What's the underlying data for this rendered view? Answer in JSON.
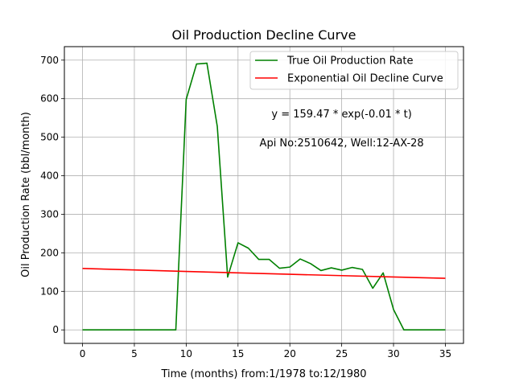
{
  "chart_data": {
    "type": "line",
    "title": "Oil Production Decline Curve",
    "xlabel": "Time (months) from:1/1978 to:12/1980",
    "ylabel": "Oil Production Rate (bbl/month)",
    "xlim": [
      -1.75,
      36.75
    ],
    "ylim": [
      -35,
      735
    ],
    "xticks": [
      0,
      5,
      10,
      15,
      20,
      25,
      30,
      35
    ],
    "yticks": [
      0,
      100,
      200,
      300,
      400,
      500,
      600,
      700
    ],
    "grid": true,
    "legend_position": "top-right",
    "series": [
      {
        "name": "True Oil Production Rate",
        "color": "#008000",
        "x": [
          0,
          1,
          2,
          3,
          4,
          5,
          6,
          7,
          8,
          9,
          10,
          11,
          12,
          13,
          14,
          15,
          16,
          17,
          18,
          19,
          20,
          21,
          22,
          23,
          24,
          25,
          26,
          27,
          28,
          29,
          30,
          31,
          32,
          33,
          34,
          35
        ],
        "y": [
          0,
          0,
          0,
          0,
          0,
          0,
          0,
          0,
          0,
          0,
          598,
          690,
          692,
          528,
          137,
          226,
          212,
          183,
          183,
          160,
          163,
          184,
          172,
          154,
          161,
          155,
          162,
          157,
          108,
          148,
          53,
          0,
          0,
          0,
          0,
          0
        ]
      },
      {
        "name": "Exponential Oil Decline Curve",
        "color": "#ff0000",
        "x": [
          0,
          5,
          10,
          15,
          20,
          25,
          30,
          35
        ],
        "y": [
          159.47,
          155.5,
          151.7,
          148.0,
          144.3,
          140.8,
          137.3,
          133.9
        ]
      }
    ],
    "annotations": [
      {
        "text": "y = 159.47 * exp(-0.01 * t)",
        "x": 25,
        "y": 560
      },
      {
        "text": "Api No:2510642, Well:12-AX-28",
        "x": 25,
        "y": 485
      }
    ]
  }
}
